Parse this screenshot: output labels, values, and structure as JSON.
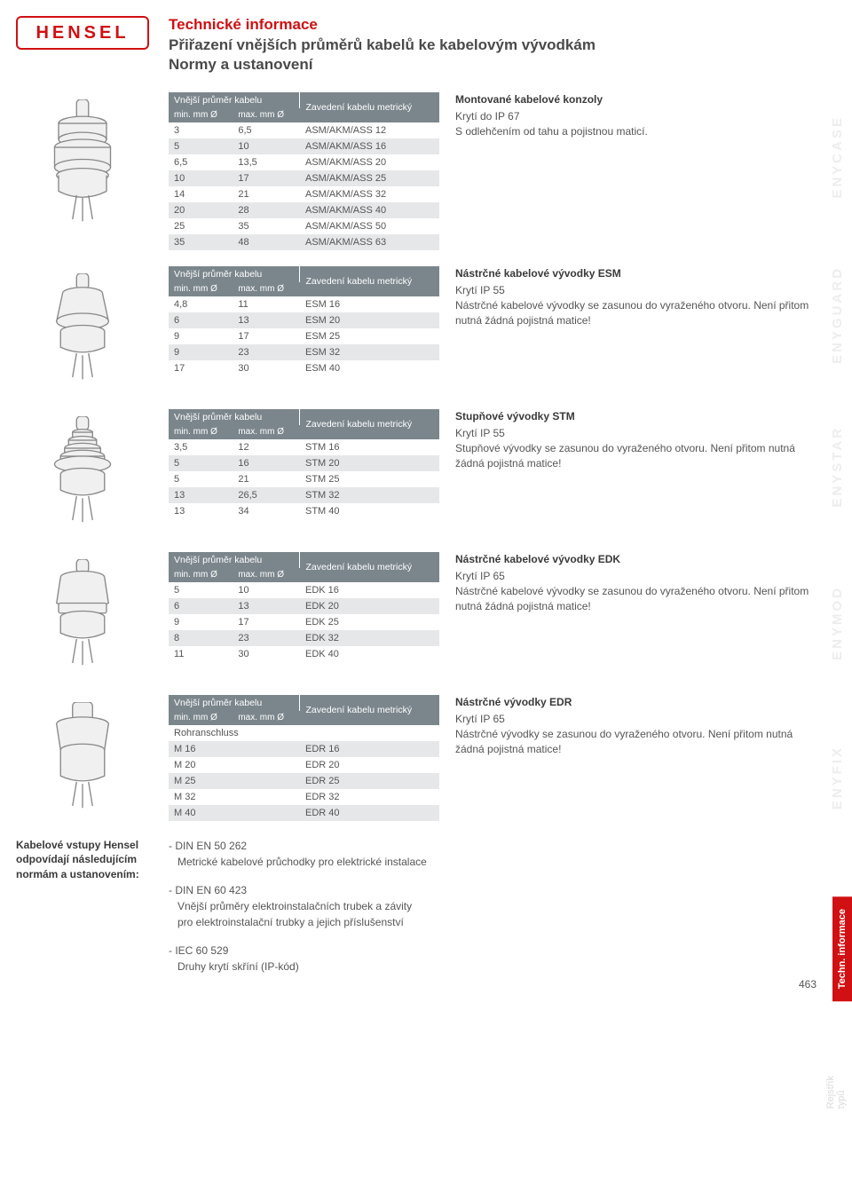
{
  "brand": "HENSEL",
  "title_red": "Technické informace",
  "title_sub1": "Přiřazení vnějších průměrů kabelů ke kabelovým vývodkám",
  "title_sub2": "Normy a ustanovení",
  "th_outer": "Vnější průměr kabelu",
  "th_min": "min. mm Ø",
  "th_max": "max. mm Ø",
  "th_entry": "Zavedení kabelu metrický",
  "tables": {
    "t1": {
      "rows": [
        [
          "3",
          "6,5",
          "ASM/AKM/ASS 12"
        ],
        [
          "5",
          "10",
          "ASM/AKM/ASS 16"
        ],
        [
          "6,5",
          "13,5",
          "ASM/AKM/ASS 20"
        ],
        [
          "10",
          "17",
          "ASM/AKM/ASS 25"
        ],
        [
          "14",
          "21",
          "ASM/AKM/ASS 32"
        ],
        [
          "20",
          "28",
          "ASM/AKM/ASS 40"
        ],
        [
          "25",
          "35",
          "ASM/AKM/ASS 50"
        ],
        [
          "35",
          "48",
          "ASM/AKM/ASS 63"
        ]
      ]
    },
    "t2": {
      "rows": [
        [
          "4,8",
          "11",
          "ESM 16"
        ],
        [
          "6",
          "13",
          "ESM 20"
        ],
        [
          "9",
          "17",
          "ESM 25"
        ],
        [
          "9",
          "23",
          "ESM 32"
        ],
        [
          "17",
          "30",
          "ESM 40"
        ]
      ]
    },
    "t3": {
      "rows": [
        [
          "3,5",
          "12",
          "STM 16"
        ],
        [
          "5",
          "16",
          "STM 20"
        ],
        [
          "5",
          "21",
          "STM 25"
        ],
        [
          "13",
          "26,5",
          "STM 32"
        ],
        [
          "13",
          "34",
          "STM 40"
        ]
      ]
    },
    "t4": {
      "rows": [
        [
          "5",
          "10",
          "EDK 16"
        ],
        [
          "6",
          "13",
          "EDK 20"
        ],
        [
          "9",
          "17",
          "EDK 25"
        ],
        [
          "8",
          "23",
          "EDK 32"
        ],
        [
          "11",
          "30",
          "EDK 40"
        ]
      ]
    },
    "t5": {
      "subheader": "Rohranschluss",
      "rows": [
        [
          "M 16",
          "EDR 16"
        ],
        [
          "M 20",
          "EDR 20"
        ],
        [
          "M 25",
          "EDR 25"
        ],
        [
          "M 32",
          "EDR 32"
        ],
        [
          "M 40",
          "EDR 40"
        ]
      ]
    }
  },
  "desc": {
    "d1": {
      "title": "Montované kabelové konzoly",
      "l1": "Krytí do IP 67",
      "l2": "S odlehčením od tahu a pojistnou maticí."
    },
    "d2": {
      "title": "Nástrčné kabelové vývodky ESM",
      "l1": "Krytí IP 55",
      "l2": "Nástrčné kabelové vývodky se zasunou do vyraženého otvoru. Není přitom nutná žádná pojistná matice!"
    },
    "d3": {
      "title": "Stupňové vývodky STM",
      "l1": "Krytí IP 55",
      "l2": "Stupňové vývodky se zasunou do vyraženého otvoru. Není přitom nutná žádná pojistná matice!"
    },
    "d4": {
      "title": "Nástrčné kabelové vývodky EDK",
      "l1": "Krytí IP 65",
      "l2": "Nástrčné kabelové vývodky se zasunou do vyraženého otvoru. Není přitom nutná žádná pojistná matice!"
    },
    "d5": {
      "title": "Nástrčné vývodky EDR",
      "l1": "Krytí IP 65",
      "l2": "Nástrčné vývodky se zasunou do vyraženého otvoru. Není přitom nutná žádná pojistná matice!"
    }
  },
  "footer": {
    "left": "Kabelové vstupy Hensel odpovídají následujícím normám a ustanovením:",
    "n1": "- DIN EN 50 262",
    "n1s": "Metrické kabelové průchodky pro elektrické instalace",
    "n2": "- DIN EN 60 423",
    "n2s1": "Vnější průměry elektroinstalačních trubek a závity",
    "n2s2": "pro elektroinstalační trubky a jejich příslušenství",
    "n3": "- IEC 60 529",
    "n3s": "Druhy krytí skříní (IP-kód)"
  },
  "side": {
    "w1": "ENYCASE",
    "w2": "ENYGUARD",
    "w3": "ENYSTAR",
    "w4": "ENYMOD",
    "w5": "ENYFIX",
    "tab": "Techn. informace",
    "tab2": "Rejstřík typů"
  },
  "pagenum": "463"
}
